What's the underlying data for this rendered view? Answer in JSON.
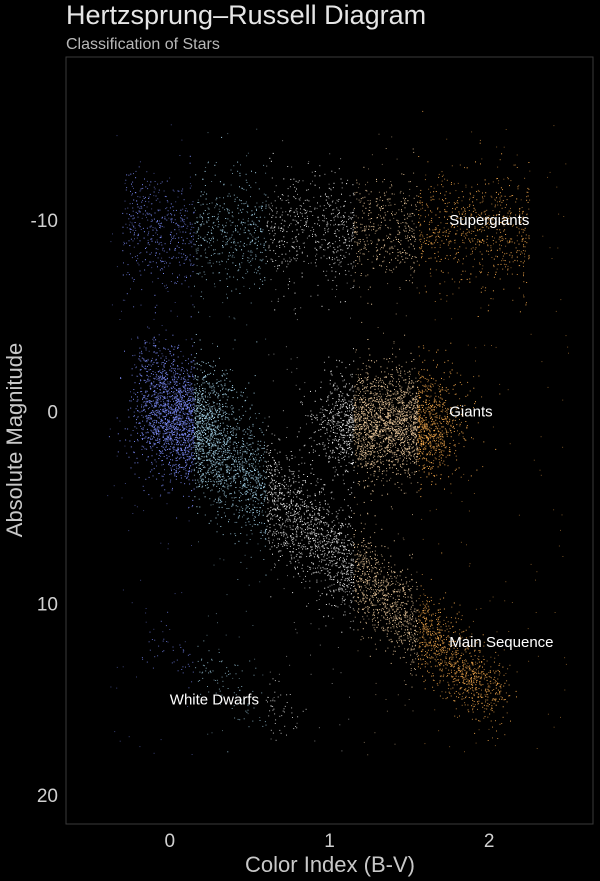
{
  "chart_data": {
    "type": "scatter",
    "title": "Hertzsprung–Russell Diagram",
    "subtitle": "Classification of Stars",
    "xlabel": "Color Index (B-V)",
    "ylabel": "Absolute Magnitude",
    "xlim": [
      -0.65,
      2.65
    ],
    "ylim": [
      21.5,
      -18.5
    ],
    "y_inverted": true,
    "x_ticks": [
      0,
      1,
      2
    ],
    "x_tick_labels": [
      "0",
      "1",
      "2"
    ],
    "y_ticks": [
      -10,
      0,
      10,
      20
    ],
    "y_tick_labels": [
      "-10",
      "0",
      "10",
      "20"
    ],
    "grid": false,
    "background": "#000000",
    "frame_color": "#3a3a3a",
    "point_colors": [
      "#7f8fff",
      "#a8d8f0",
      "#ffffff",
      "#ffd9a8",
      "#ffb050"
    ],
    "regions": [
      {
        "name": "Supergiants",
        "x_range": [
          -0.3,
          2.4
        ],
        "y_center": -9,
        "y_spread": 3.5
      },
      {
        "name": "Giants",
        "x_range": [
          0.9,
          1.8
        ],
        "y_center": 0.5,
        "y_spread": 2.5
      },
      {
        "name": "Main Sequence",
        "x_from": -0.15,
        "y_from": -1,
        "x_to": 2.1,
        "y_to": 15
      },
      {
        "name": "White Dwarfs",
        "x_range": [
          -0.2,
          0.8
        ],
        "y_center": 14,
        "y_spread": 2
      }
    ],
    "annotations": [
      {
        "text": "Supergiants",
        "x": 1.75,
        "y": -10
      },
      {
        "text": "Giants",
        "x": 1.75,
        "y": 0
      },
      {
        "text": "Main Sequence",
        "x": 1.75,
        "y": 12
      },
      {
        "text": "White Dwarfs",
        "x": 0.0,
        "y": 15
      }
    ]
  }
}
